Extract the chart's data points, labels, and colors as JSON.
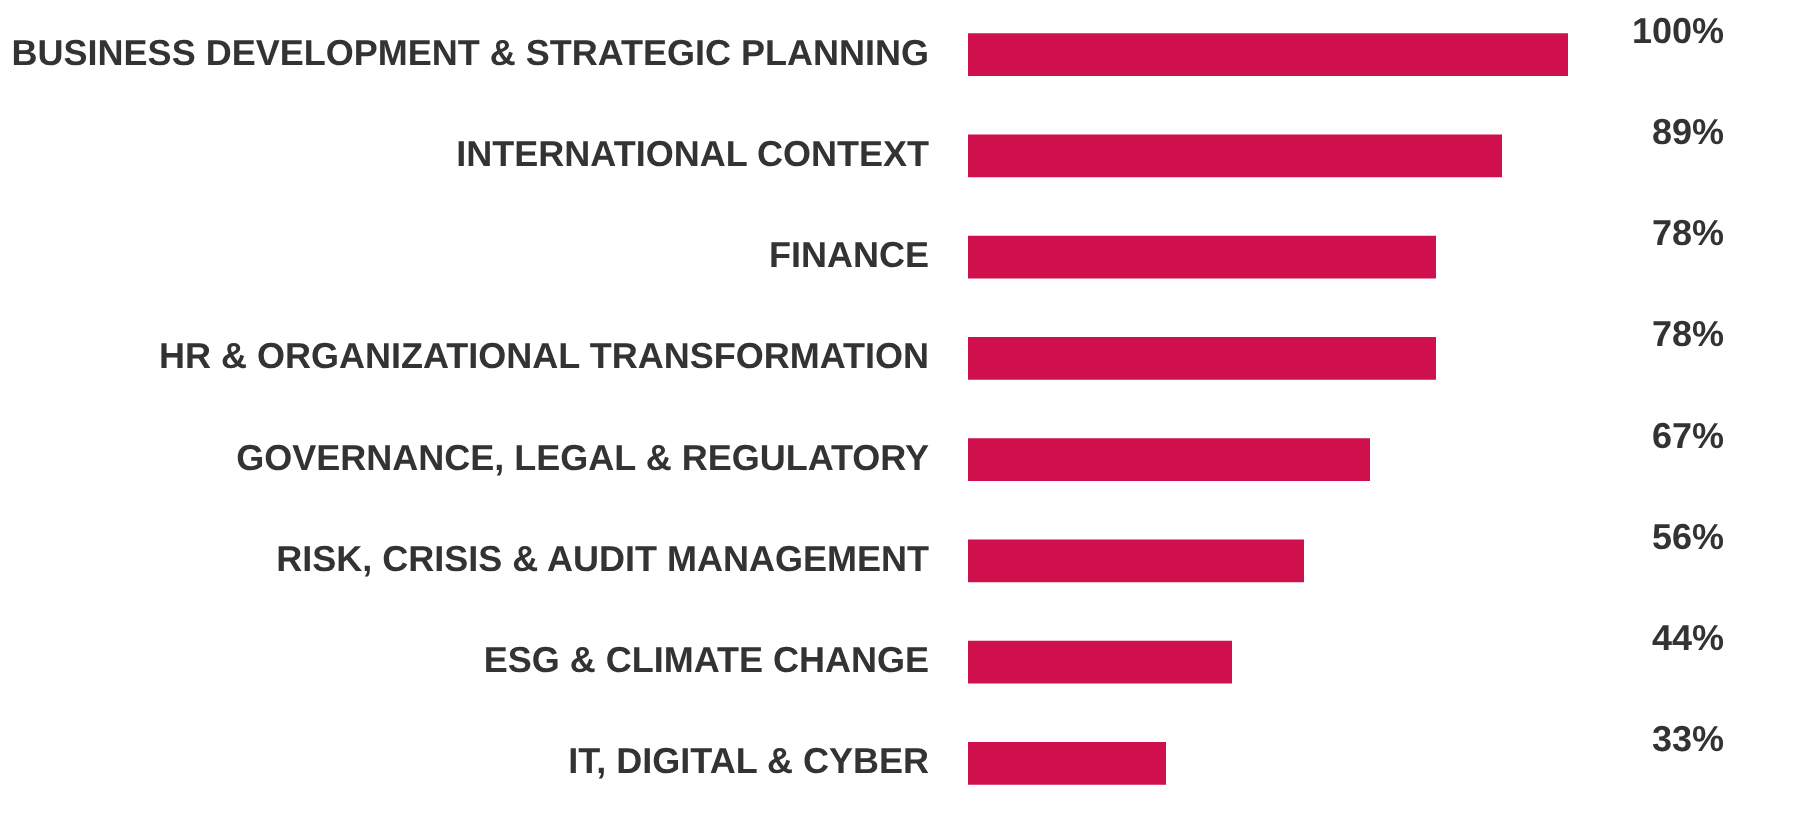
{
  "chart_data": {
    "type": "bar",
    "orientation": "horizontal",
    "categories": [
      "BUSINESS DEVELOPMENT & STRATEGIC PLANNING",
      "INTERNATIONAL CONTEXT",
      "FINANCE",
      "HR & ORGANIZATIONAL TRANSFORMATION",
      "GOVERNANCE, LEGAL & REGULATORY",
      "RISK, CRISIS & AUDIT  MANAGEMENT",
      "ESG & CLIMATE CHANGE",
      "IT, DIGITAL & CYBER"
    ],
    "values": [
      100,
      89,
      78,
      78,
      67,
      56,
      44,
      33
    ],
    "value_labels": [
      "100%",
      "89%",
      "78%",
      "78%",
      "67%",
      "56%",
      "44%",
      "33%"
    ],
    "color": "#d0104c",
    "xlim": [
      0,
      100
    ],
    "tick_labels": "y"
  }
}
